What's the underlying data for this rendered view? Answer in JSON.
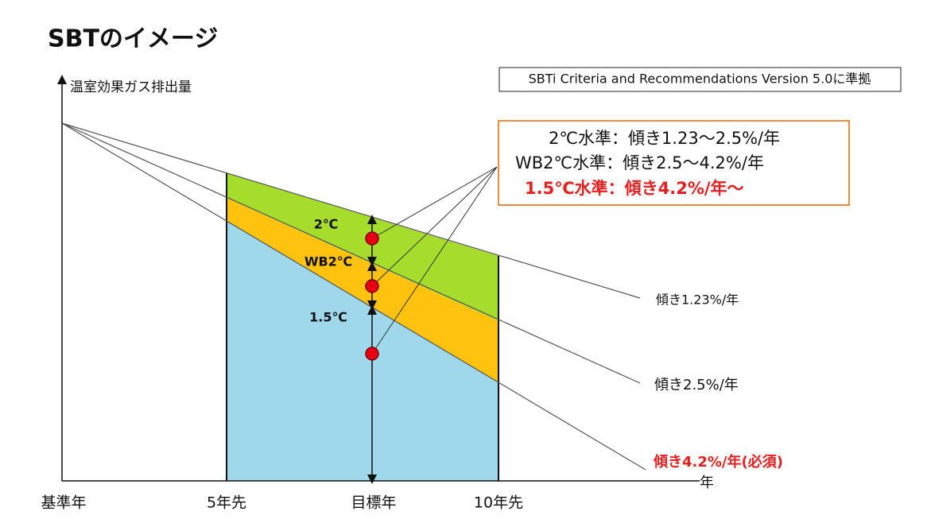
{
  "title": "SBTのイメージ",
  "note": "SBTi Criteria and Recommendations Version 5.0に準拠",
  "y_axis_label": "温室効果ガス排出量",
  "x_axis_label": "年",
  "x_labels": [
    "基準年",
    "5年先",
    "目標年",
    "10年先"
  ],
  "bands": [
    "2℃",
    "WB2℃",
    "1.5℃"
  ],
  "callout": [
    "2℃水準：傾き1.23～2.5%/年",
    "WB2℃水準：傾き2.5～4.2%/年",
    "1.5℃水準：傾き4.2%/年～"
  ],
  "slopes": [
    "傾き1.23%/年",
    "傾き2.5%/年",
    "傾き4.2%/年(必須)"
  ]
}
